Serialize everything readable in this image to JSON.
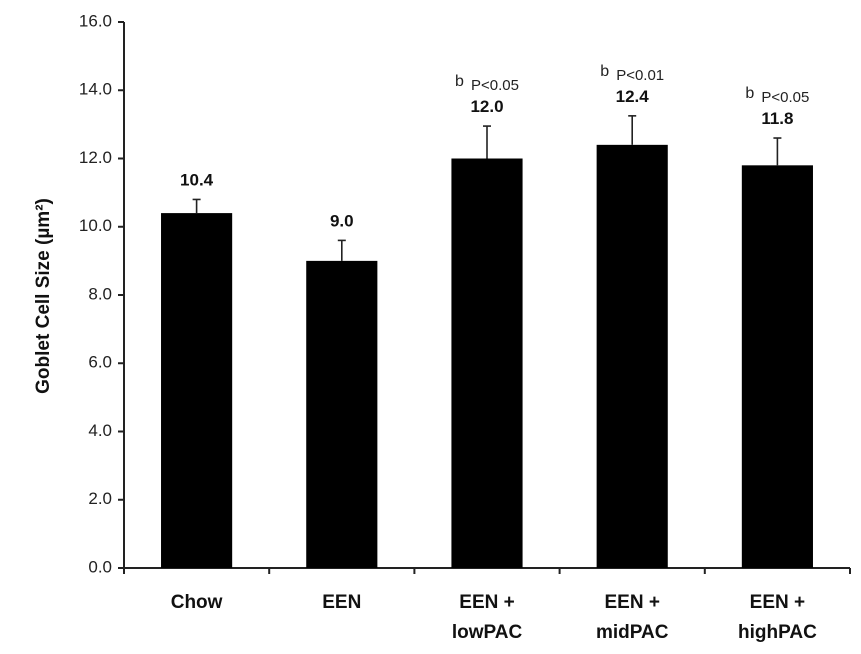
{
  "chart_data": {
    "type": "bar",
    "ylabel": "Goblet Cell Size (µm²)",
    "ylim": [
      0,
      16
    ],
    "yticks": [
      "0.0",
      "2.0",
      "4.0",
      "6.0",
      "8.0",
      "10.0",
      "12.0",
      "14.0",
      "16.0"
    ],
    "grid": false,
    "bar_color": "#000000",
    "categories": [
      [
        "Chow"
      ],
      [
        "EEN"
      ],
      [
        "EEN +",
        "lowPAC"
      ],
      [
        "EEN +",
        "midPAC"
      ],
      [
        "EEN +",
        "highPAC"
      ]
    ],
    "values": [
      10.4,
      9.0,
      12.0,
      12.4,
      11.8
    ],
    "value_labels": [
      "10.4",
      "9.0",
      "12.0",
      "12.4",
      "11.8"
    ],
    "error_upper": [
      0.4,
      0.6,
      0.95,
      0.85,
      0.8
    ],
    "annotations": [
      null,
      null,
      {
        "letter": "b",
        "p": "P<0.05"
      },
      {
        "letter": "b",
        "p": "P<0.01"
      },
      {
        "letter": "b",
        "p": "P<0.05"
      }
    ]
  }
}
